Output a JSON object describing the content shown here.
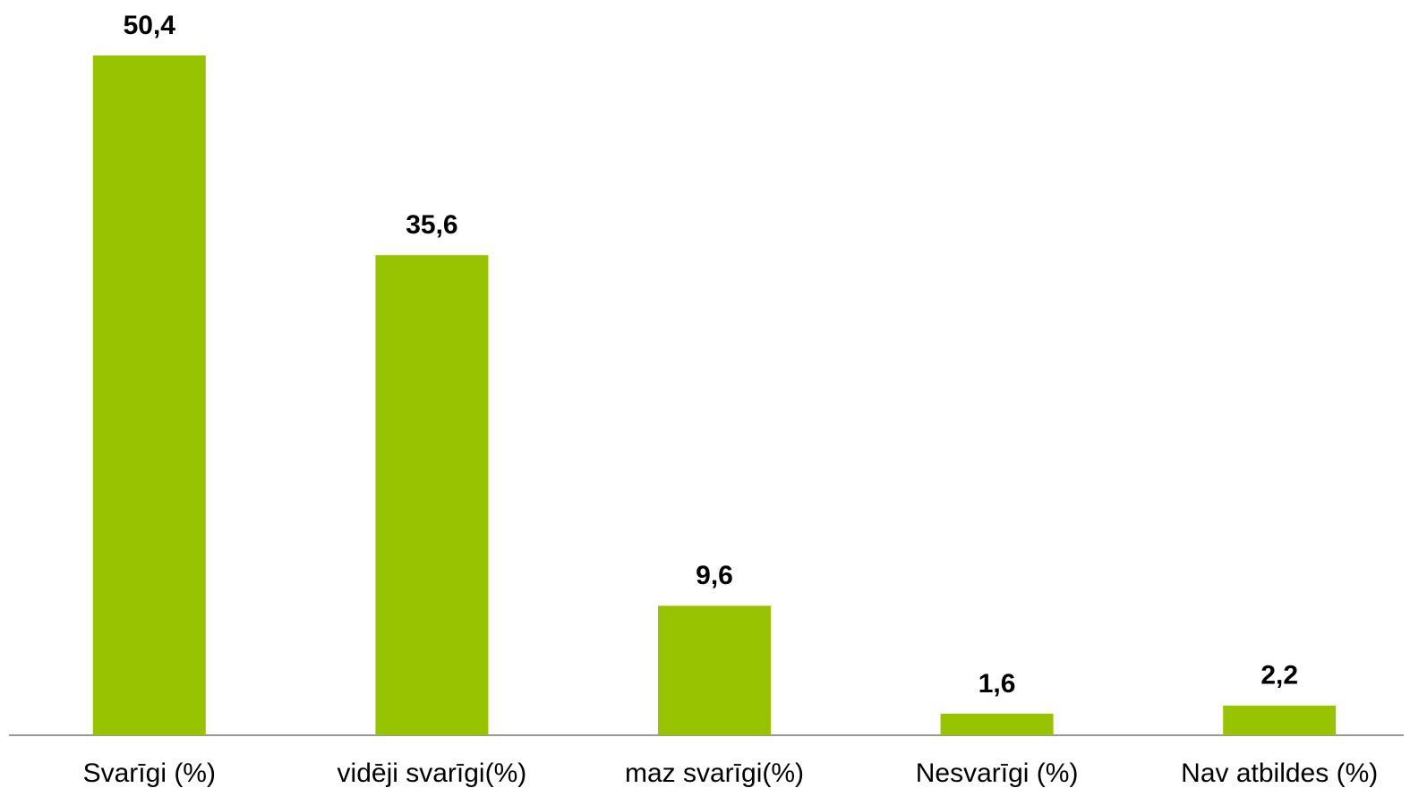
{
  "chart_data": {
    "type": "bar",
    "categories": [
      "Svarīgi (%)",
      "vidēji svarīgi(%)",
      "maz svarīgi(%)",
      "Nesvarīgi (%)",
      "Nav atbildes (%)"
    ],
    "values": [
      50.4,
      35.6,
      9.6,
      1.6,
      2.2
    ],
    "value_labels": [
      "50,4",
      "35,6",
      "9,6",
      "1,6",
      "2,2"
    ],
    "color": "#97c300"
  }
}
